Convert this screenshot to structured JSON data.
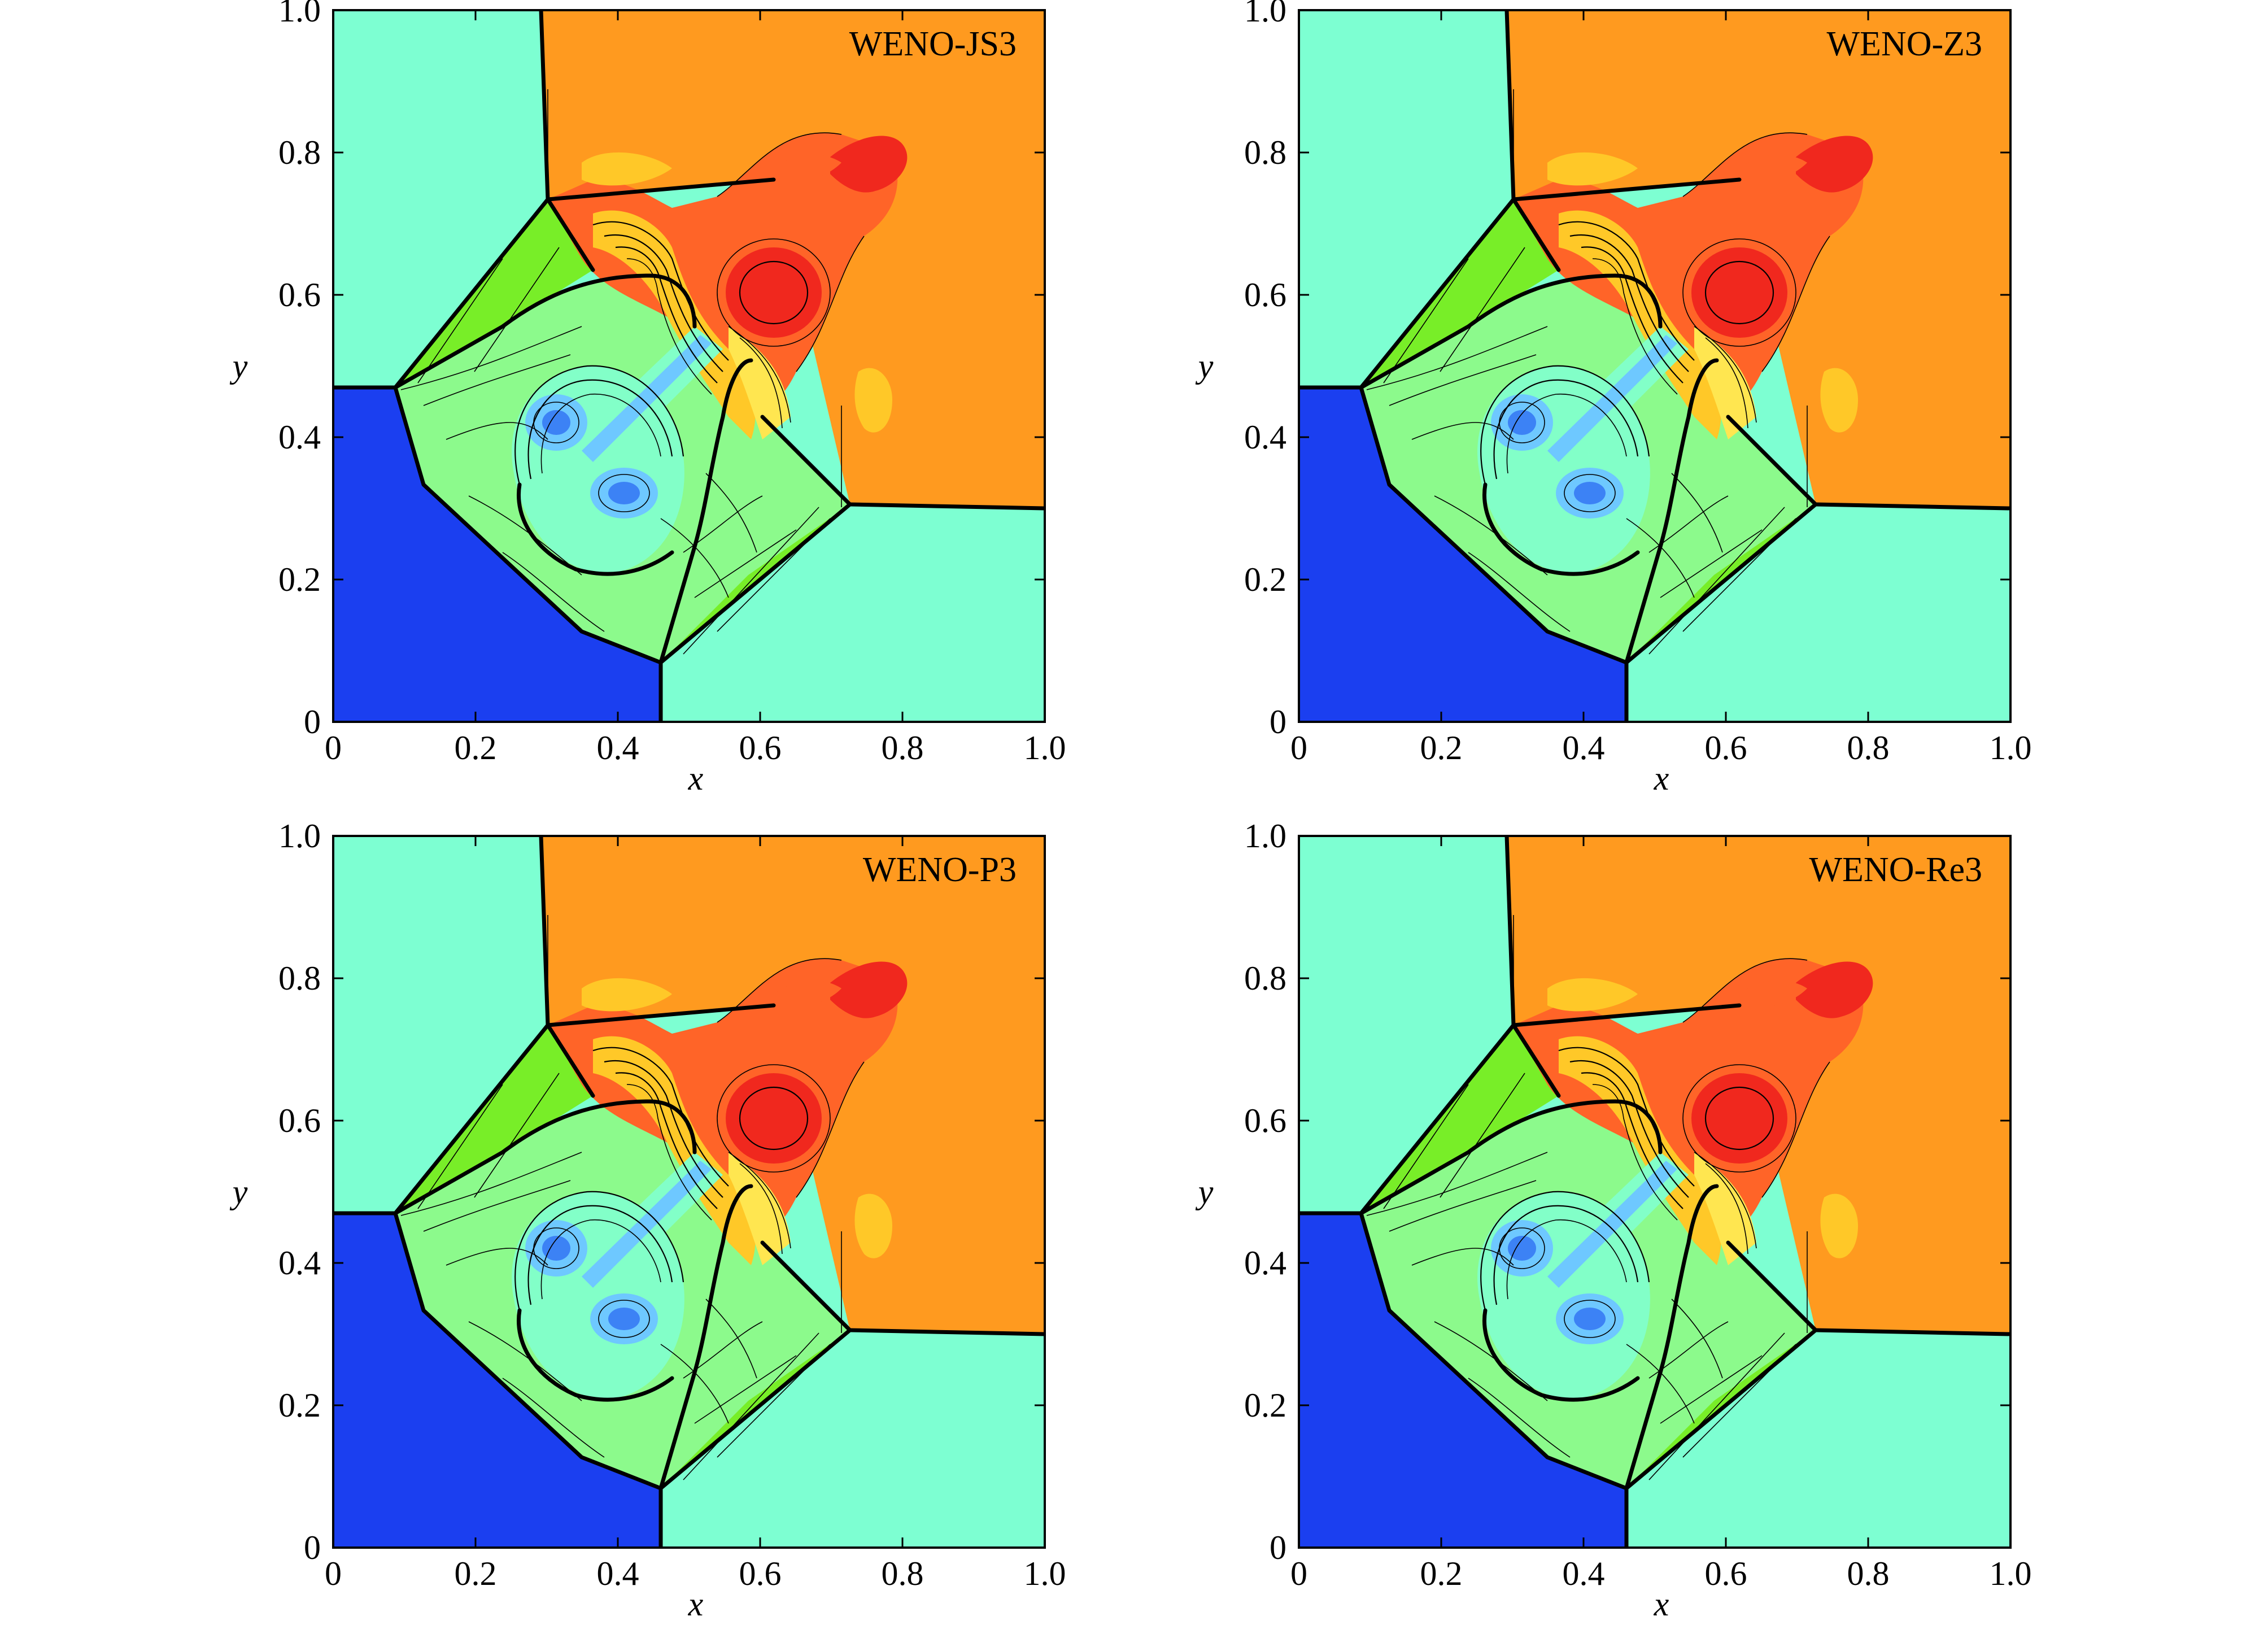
{
  "chart_data": [
    {
      "type": "contour",
      "title": "WENO-JS3",
      "xlabel": "x",
      "ylabel": "y",
      "xlim": [
        0,
        1.0
      ],
      "ylim": [
        0,
        1.0
      ],
      "xticks": [
        "0",
        "0.2",
        "0.4",
        "0.6",
        "0.8",
        "1.0"
      ],
      "yticks": [
        "0",
        "0.2",
        "0.4",
        "0.6",
        "0.8",
        "1.0"
      ],
      "grid": false
    },
    {
      "type": "contour",
      "title": "WENO-Z3",
      "xlabel": "x",
      "ylabel": "y",
      "xlim": [
        0,
        1.0
      ],
      "ylim": [
        0,
        1.0
      ],
      "xticks": [
        "0",
        "0.2",
        "0.4",
        "0.6",
        "0.8",
        "1.0"
      ],
      "yticks": [
        "0",
        "0.2",
        "0.4",
        "0.6",
        "0.8",
        "1.0"
      ],
      "grid": false
    },
    {
      "type": "contour",
      "title": "WENO-P3",
      "xlabel": "x",
      "ylabel": "y",
      "xlim": [
        0,
        1.0
      ],
      "ylim": [
        0,
        1.0
      ],
      "xticks": [
        "0",
        "0.2",
        "0.4",
        "0.6",
        "0.8",
        "1.0"
      ],
      "yticks": [
        "0",
        "0.2",
        "0.4",
        "0.6",
        "0.8",
        "1.0"
      ],
      "grid": false
    },
    {
      "type": "contour",
      "title": "WENO-Re3",
      "xlabel": "x",
      "ylabel": "y",
      "xlim": [
        0,
        1.0
      ],
      "ylim": [
        0,
        1.0
      ],
      "xticks": [
        "0",
        "0.2",
        "0.4",
        "0.6",
        "0.8",
        "1.0"
      ],
      "yticks": [
        "0",
        "0.2",
        "0.4",
        "0.6",
        "0.8",
        "1.0"
      ],
      "grid": false
    }
  ],
  "colors": {
    "quadrant_blue": "#1b3ff0",
    "quadrant_cyan": "#7dffd2",
    "quadrant_orange": "#ff9a1f",
    "red": "#f0281e",
    "red_orange": "#ff6428",
    "yellow": "#ffc828",
    "green": "#78ee28",
    "light_green": "#8cfa8c",
    "mint": "#82ffc8",
    "light_blue": "#6ec8ff",
    "mid_blue": "#3c82f5"
  }
}
